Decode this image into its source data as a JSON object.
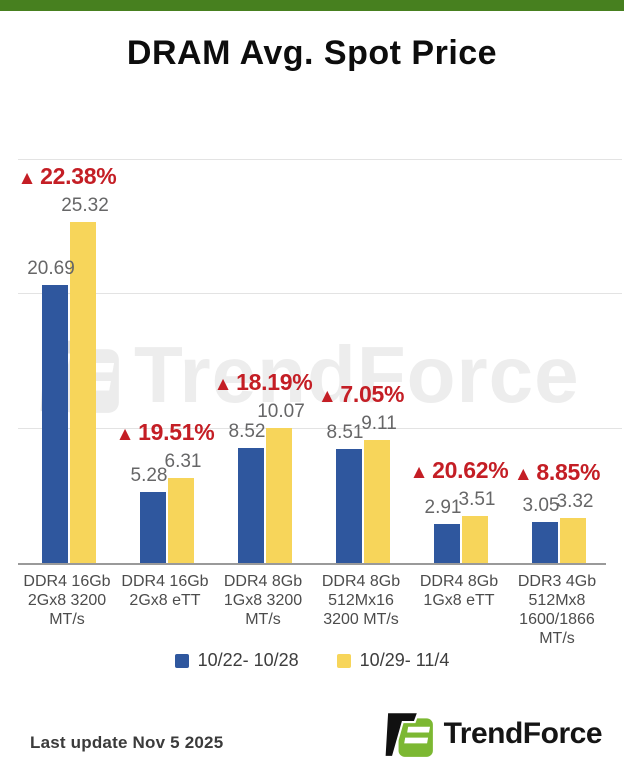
{
  "page": {
    "title": "DRAM Avg. Spot Price"
  },
  "colors": {
    "top_bar_green": "#47801F",
    "series_blue": "#2F579E",
    "series_yellow": "#F7D55A",
    "change_red": "#C41E25",
    "logo_green": "#7CB832",
    "logo_black": "#111111",
    "watermark_gray": "#ededed"
  },
  "chart_data": {
    "type": "bar",
    "title": "DRAM Avg. Spot Price",
    "categories": [
      "DDR4 16Gb\n2Gx8 3200\nMT/s",
      "DDR4 16Gb\n2Gx8 eTT",
      "DDR4 8Gb\n1Gx8 3200\nMT/s",
      "DDR4 8Gb\n512Mx16\n3200 MT/s",
      "DDR4 8Gb\n1Gx8 eTT",
      "DDR3 4Gb\n512Mx8\n1600/1866\nMT/s"
    ],
    "series": [
      {
        "name": "10/22- 10/28",
        "color": "#2F579E",
        "values": [
          20.69,
          5.28,
          8.52,
          8.51,
          2.91,
          3.05
        ]
      },
      {
        "name": "10/29- 11/4",
        "color": "#F7D55A",
        "values": [
          25.32,
          6.31,
          10.07,
          9.11,
          3.51,
          3.32
        ]
      }
    ],
    "pct_changes": [
      "22.38%",
      "19.51%",
      "18.19%",
      "7.05%",
      "20.62%",
      "8.85%"
    ],
    "pct_direction": "up",
    "xlabel": "",
    "ylabel": "",
    "ylim": [
      0,
      30
    ],
    "gridline_values": [
      10,
      20,
      30
    ],
    "grid": true,
    "legend_position": "bottom"
  },
  "watermark": {
    "text": "TrendForce"
  },
  "footer": {
    "last_update": "Last update Nov 5  2025",
    "brand": "TrendForce"
  }
}
